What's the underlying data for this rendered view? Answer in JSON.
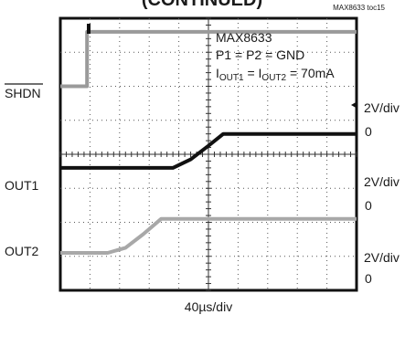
{
  "chart_data": {
    "type": "line",
    "title_partial": "(CONTINUED)",
    "figure_code": "MAX8633 toc15",
    "annotations": {
      "device": "MAX8633",
      "condition_1": "P1 = P2 = GND",
      "condition_2_base": "I",
      "condition_2_sub1": "OUT1",
      "condition_2_mid": " = I",
      "condition_2_sub2": "OUT2",
      "condition_2_end": " = 70mA"
    },
    "xlabel": "40µs/div",
    "grid": true,
    "x_divisions": 10,
    "y_divisions": 8,
    "channels": [
      {
        "name": "SHDN",
        "overline": true,
        "scale": "2V/div",
        "zero_label": "0",
        "color": "#9a9a9a",
        "zero_div": 6.0,
        "x": [
          0,
          0.9,
          0.9,
          10
        ],
        "y": [
          0,
          0,
          1.6,
          1.6
        ]
      },
      {
        "name": "OUT1",
        "overline": false,
        "scale": "2V/div",
        "zero_label": "0",
        "color": "#111111",
        "zero_div": 3.6,
        "x": [
          0,
          3.8,
          4.4,
          5.0,
          5.5,
          10
        ],
        "y": [
          0,
          0,
          0.25,
          0.65,
          1.0,
          1.0
        ]
      },
      {
        "name": "OUT2",
        "overline": false,
        "scale": "2V/div",
        "zero_label": "0",
        "color": "#a8a8a8",
        "zero_div": 1.1,
        "x": [
          0,
          1.6,
          2.2,
          2.8,
          3.4,
          10
        ],
        "y": [
          0,
          0,
          0.15,
          0.55,
          1.0,
          1.0
        ]
      }
    ]
  }
}
